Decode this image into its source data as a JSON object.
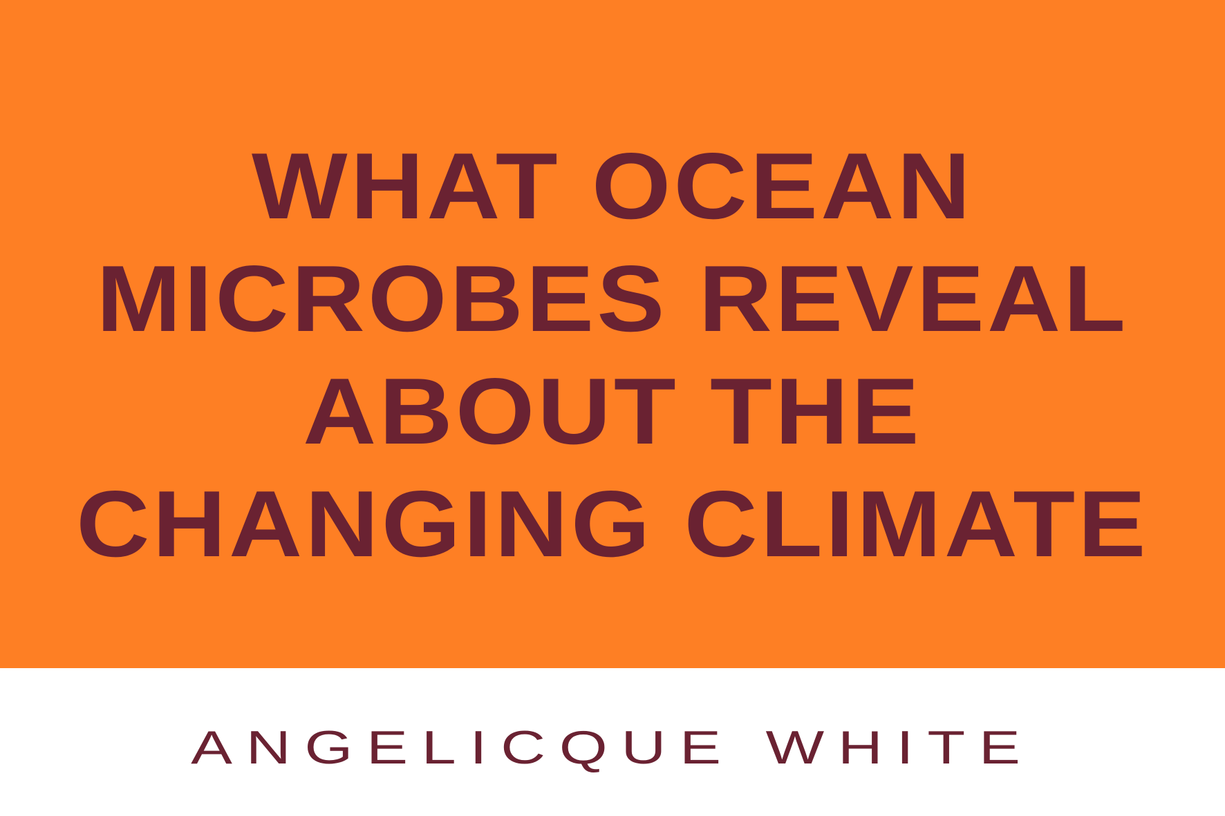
{
  "title": {
    "lines": [
      "WHAT OCEAN",
      "MICROBES REVEAL",
      "ABOUT THE",
      "CHANGING CLIMATE"
    ]
  },
  "author": {
    "name": "ANGELICQUE WHITE"
  },
  "colors": {
    "banner_background": "#fe7f24",
    "text": "#6a2232",
    "footer_background": "#ffffff"
  }
}
